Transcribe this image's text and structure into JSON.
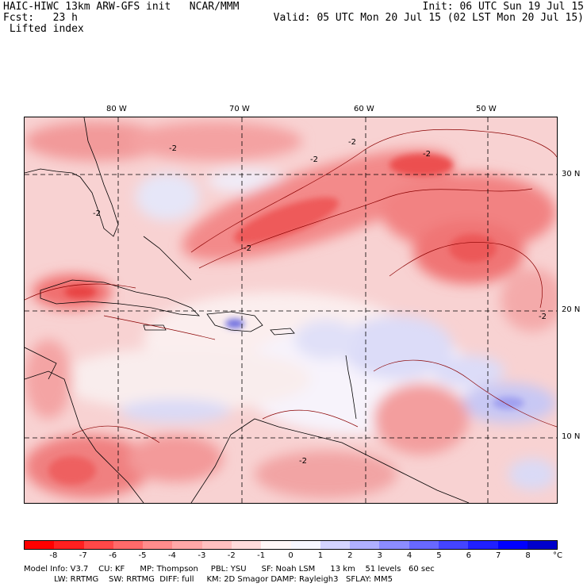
{
  "header": {
    "line1_left": "HAIC-HIWC 13km ARW-GFS init   NCAR/MMM",
    "line2_left": "Fcst:   23 h",
    "line3_left": " Lifted index",
    "line1_right": "Init: 06 UTC Sun 19 Jul 15",
    "line2_right": "Valid: 05 UTC Mon 20 Jul 15 (02 LST Mon 20 Jul 15)"
  },
  "lon_labels": [
    "80 W",
    "70 W",
    "60 W",
    "50 W"
  ],
  "lat_labels": [
    "30 N",
    "20 N",
    "10 N"
  ],
  "contour_labels": [
    "-2",
    "-2",
    "-2",
    "-2",
    "-2",
    "-2",
    "-2",
    "-2"
  ],
  "colorbar": {
    "labels": [
      "-8",
      "-7",
      "-6",
      "-5",
      "-4",
      "-3",
      "-2",
      "-1",
      "0",
      "1",
      "2",
      "3",
      "4",
      "5",
      "6",
      "7",
      "8"
    ],
    "unit": "°C",
    "colors": [
      "#ff0000",
      "#ff2020",
      "#ff4848",
      "#ff6a6a",
      "#ff8c8c",
      "#ffa8a8",
      "#ffc0c0",
      "#ffdcdc",
      "#fff6f6",
      "#f6f6ff",
      "#d4d4ff",
      "#b0b0ff",
      "#8c8cff",
      "#6868ff",
      "#4444ff",
      "#2020ff",
      "#0000ff",
      "#0000cc"
    ]
  },
  "footer": {
    "line1": "Model Info: V3.7    CU: KF      MP: Thompson     PBL: YSU      SF: Noah LSM      13 km    51 levels   60 sec",
    "line2": "            LW: RRTMG    SW: RRTMG  DIFF: full     KM: 2D Smagor DAMP: Rayleigh3   SFLAY: MM5"
  }
}
